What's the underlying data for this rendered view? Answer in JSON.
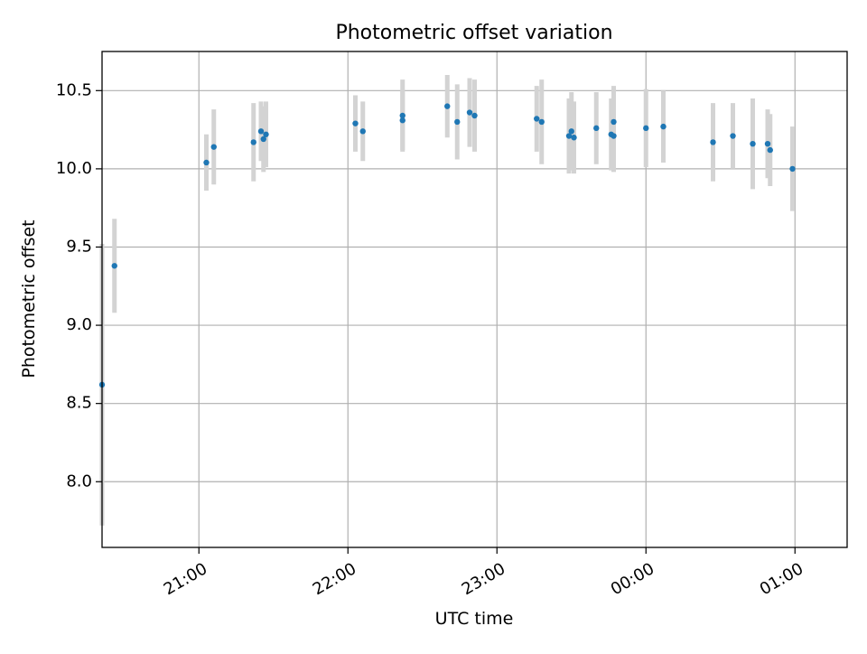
{
  "chart_data": {
    "type": "scatter",
    "title": "Photometric offset variation",
    "xlabel": "UTC time",
    "ylabel": "Photometric offset",
    "x_axis": {
      "kind": "time",
      "range": [
        "20:21",
        "01:21"
      ],
      "ticks": [
        "21:00",
        "22:00",
        "23:00",
        "00:00",
        "01:00"
      ],
      "tick_rotation_deg": 30
    },
    "y_axis": {
      "range": [
        7.58,
        10.75
      ],
      "ticks": [
        "8.0",
        "8.5",
        "9.0",
        "9.5",
        "10.0",
        "10.5"
      ]
    },
    "grid": true,
    "legend": "none",
    "marker_color": "#1f77b4",
    "errorbar_color": "#d3d3d3",
    "points": [
      {
        "t": "20:21",
        "y": 8.62,
        "err": 0.9
      },
      {
        "t": "20:26",
        "y": 9.38,
        "err": 0.3
      },
      {
        "t": "21:03",
        "y": 10.04,
        "err": 0.18
      },
      {
        "t": "21:06",
        "y": 10.14,
        "err": 0.24
      },
      {
        "t": "21:22",
        "y": 10.17,
        "err": 0.25
      },
      {
        "t": "21:25",
        "y": 10.24,
        "err": 0.19
      },
      {
        "t": "21:26",
        "y": 10.19,
        "err": 0.21
      },
      {
        "t": "21:27",
        "y": 10.22,
        "err": 0.21
      },
      {
        "t": "22:03",
        "y": 10.29,
        "err": 0.18
      },
      {
        "t": "22:06",
        "y": 10.24,
        "err": 0.19
      },
      {
        "t": "22:22",
        "y": 10.31,
        "err": 0.19
      },
      {
        "t": "22:22",
        "y": 10.34,
        "err": 0.23
      },
      {
        "t": "22:40",
        "y": 10.4,
        "err": 0.2
      },
      {
        "t": "22:44",
        "y": 10.3,
        "err": 0.24
      },
      {
        "t": "22:49",
        "y": 10.36,
        "err": 0.22
      },
      {
        "t": "22:51",
        "y": 10.34,
        "err": 0.23
      },
      {
        "t": "23:16",
        "y": 10.32,
        "err": 0.21
      },
      {
        "t": "23:18",
        "y": 10.3,
        "err": 0.27
      },
      {
        "t": "23:29",
        "y": 10.21,
        "err": 0.24
      },
      {
        "t": "23:30",
        "y": 10.24,
        "err": 0.25
      },
      {
        "t": "23:31",
        "y": 10.2,
        "err": 0.23
      },
      {
        "t": "23:40",
        "y": 10.26,
        "err": 0.23
      },
      {
        "t": "23:46",
        "y": 10.22,
        "err": 0.23
      },
      {
        "t": "23:47",
        "y": 10.21,
        "err": 0.23
      },
      {
        "t": "23:47",
        "y": 10.3,
        "err": 0.23
      },
      {
        "t": "00:00",
        "y": 10.26,
        "err": 0.25
      },
      {
        "t": "00:07",
        "y": 10.27,
        "err": 0.23
      },
      {
        "t": "00:27",
        "y": 10.17,
        "err": 0.25
      },
      {
        "t": "00:35",
        "y": 10.21,
        "err": 0.21
      },
      {
        "t": "00:43",
        "y": 10.16,
        "err": 0.29
      },
      {
        "t": "00:49",
        "y": 10.16,
        "err": 0.22
      },
      {
        "t": "00:50",
        "y": 10.12,
        "err": 0.23
      },
      {
        "t": "00:59",
        "y": 10.0,
        "err": 0.27
      }
    ]
  }
}
